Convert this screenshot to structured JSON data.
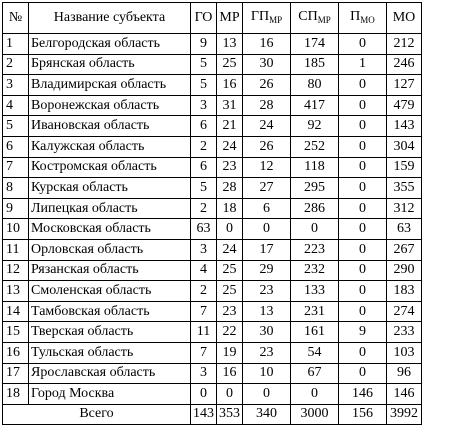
{
  "table": {
    "headers": {
      "num": "№",
      "subject": "Название субъекта",
      "go": "ГО",
      "mr": "МР",
      "gp_main": "ГП",
      "gp_sub": "МР",
      "sp_main": "СП",
      "sp_sub": "МР",
      "p_main": "П",
      "p_sub": "МО",
      "mo": "МО"
    },
    "rows": [
      {
        "n": "1",
        "name": "Белгородская область",
        "go": "9",
        "mr": "13",
        "gp": "16",
        "sp": "174",
        "p": "0",
        "mo": "212"
      },
      {
        "n": "2",
        "name": "Брянская область",
        "go": "5",
        "mr": "25",
        "gp": "30",
        "sp": "185",
        "p": "1",
        "mo": "246"
      },
      {
        "n": "3",
        "name": "Владимирская область",
        "go": "5",
        "mr": "16",
        "gp": "26",
        "sp": "80",
        "p": "0",
        "mo": "127"
      },
      {
        "n": "4",
        "name": "Воронежская область",
        "go": "3",
        "mr": "31",
        "gp": "28",
        "sp": "417",
        "p": "0",
        "mo": "479"
      },
      {
        "n": "5",
        "name": "Ивановская область",
        "go": "6",
        "mr": "21",
        "gp": "24",
        "sp": "92",
        "p": "0",
        "mo": "143"
      },
      {
        "n": "6",
        "name": "Калужская область",
        "go": "2",
        "mr": "24",
        "gp": "26",
        "sp": "252",
        "p": "0",
        "mo": "304"
      },
      {
        "n": "7",
        "name": "Костромская область",
        "go": "6",
        "mr": "23",
        "gp": "12",
        "sp": "118",
        "p": "0",
        "mo": "159"
      },
      {
        "n": "8",
        "name": "Курская область",
        "go": "5",
        "mr": "28",
        "gp": "27",
        "sp": "295",
        "p": "0",
        "mo": "355"
      },
      {
        "n": "9",
        "name": "Липецкая область",
        "go": "2",
        "mr": "18",
        "gp": "6",
        "sp": "286",
        "p": "0",
        "mo": "312"
      },
      {
        "n": "10",
        "name": "Московская область",
        "go": "63",
        "mr": "0",
        "gp": "0",
        "sp": "0",
        "p": "0",
        "mo": "63"
      },
      {
        "n": "11",
        "name": "Орловская область",
        "go": "3",
        "mr": "24",
        "gp": "17",
        "sp": "223",
        "p": "0",
        "mo": "267"
      },
      {
        "n": "12",
        "name": "Рязанская область",
        "go": "4",
        "mr": "25",
        "gp": "29",
        "sp": "232",
        "p": "0",
        "mo": "290"
      },
      {
        "n": "13",
        "name": "Смоленская область",
        "go": "2",
        "mr": "25",
        "gp": "23",
        "sp": "133",
        "p": "0",
        "mo": "183"
      },
      {
        "n": "14",
        "name": "Тамбовская область",
        "go": "7",
        "mr": "23",
        "gp": "13",
        "sp": "231",
        "p": "0",
        "mo": "274"
      },
      {
        "n": "15",
        "name": "Тверская область",
        "go": "11",
        "mr": "22",
        "gp": "30",
        "sp": "161",
        "p": "9",
        "mo": "233"
      },
      {
        "n": "16",
        "name": "Тульская область",
        "go": "7",
        "mr": "19",
        "gp": "23",
        "sp": "54",
        "p": "0",
        "mo": "103"
      },
      {
        "n": "17",
        "name": "Ярославская область",
        "go": "3",
        "mr": "16",
        "gp": "10",
        "sp": "67",
        "p": "0",
        "mo": "96"
      },
      {
        "n": "18",
        "name": "Город Москва",
        "go": "0",
        "mr": "0",
        "gp": "0",
        "sp": "0",
        "p": "146",
        "mo": "146"
      }
    ],
    "total": {
      "label": "Всего",
      "go": "143",
      "mr": "353",
      "gp": "340",
      "sp": "3000",
      "p": "156",
      "mo": "3992"
    }
  }
}
